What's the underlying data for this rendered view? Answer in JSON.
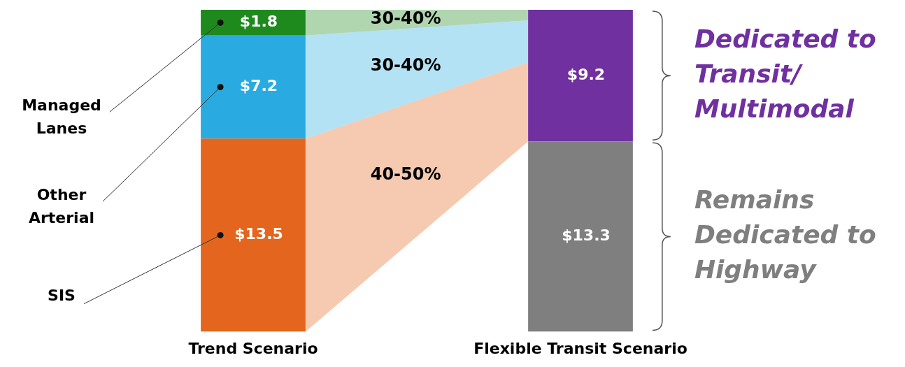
{
  "chart_data": {
    "type": "bar",
    "stacked": true,
    "categories": [
      "Trend Scenario",
      "Flexible Transit Scenario"
    ],
    "series": [
      {
        "name": "SIS",
        "color": "#e4661e",
        "values": [
          13.5,
          null
        ],
        "value_labels": [
          "$13.5",
          null
        ]
      },
      {
        "name": "Other Arterial",
        "color": "#29abe2",
        "values": [
          7.2,
          null
        ],
        "value_labels": [
          "$7.2",
          null
        ]
      },
      {
        "name": "Managed Lanes",
        "color": "#1e8a1e",
        "values": [
          1.8,
          null
        ],
        "value_labels": [
          "$1.8",
          null
        ]
      },
      {
        "name": "Remains Dedicated to Highway",
        "color": "#7f7f7f",
        "values": [
          null,
          13.3
        ],
        "value_labels": [
          null,
          "$13.3"
        ]
      },
      {
        "name": "Dedicated to Transit/ Multimodal",
        "color": "#7030a0",
        "values": [
          null,
          9.2
        ],
        "value_labels": [
          null,
          "$9.2"
        ]
      }
    ],
    "annotations": [
      "30-40%",
      "30-40%",
      "40-50%"
    ]
  }
}
